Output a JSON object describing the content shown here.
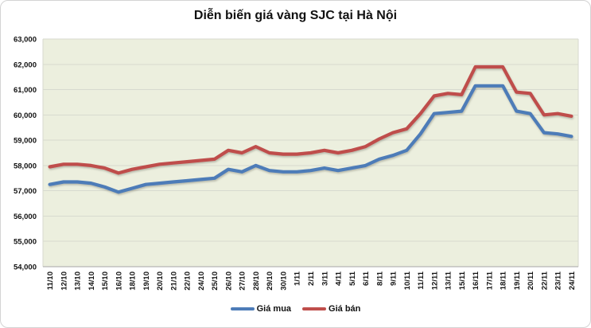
{
  "title": "Diễn biến giá vàng SJC tại Hà Nội",
  "legend": {
    "items": [
      {
        "label": "Giá mua",
        "color": "#4d7cb8"
      },
      {
        "label": "Giá bán",
        "color": "#bf4e4b"
      }
    ]
  },
  "chart_data": {
    "type": "line",
    "title": "Diễn biến giá vàng SJC tại Hà Nội",
    "categories": [
      "11/10",
      "12/10",
      "13/10",
      "14/10",
      "15/10",
      "16/10",
      "18/10",
      "19/10",
      "20/10",
      "21/10",
      "22/10",
      "24/10",
      "25/10",
      "26/10",
      "27/10",
      "28/10",
      "29/10",
      "30/10",
      "1/11",
      "2/11",
      "3/11",
      "4/11",
      "5/11",
      "6/11",
      "8/11",
      "9/11",
      "10/11",
      "11/11",
      "12/11",
      "13/11",
      "15/11",
      "16/11",
      "17/11",
      "18/11",
      "19/11",
      "20/11",
      "22/11",
      "23/11",
      "24/11"
    ],
    "series": [
      {
        "name": "Giá mua",
        "color": "#4d7cb8",
        "values": [
          57250,
          57350,
          57350,
          57300,
          57150,
          56950,
          57100,
          57250,
          57300,
          57350,
          57400,
          57450,
          57500,
          57850,
          57750,
          58000,
          57800,
          57750,
          57750,
          57800,
          57900,
          57800,
          57900,
          58000,
          58250,
          58400,
          58600,
          59250,
          60050,
          60100,
          60150,
          61150,
          61150,
          61150,
          60150,
          60050,
          59300,
          59250,
          59150
        ]
      },
      {
        "name": "Giá bán",
        "color": "#bf4e4b",
        "values": [
          57950,
          58050,
          58050,
          58000,
          57900,
          57700,
          57850,
          57950,
          58050,
          58100,
          58150,
          58200,
          58250,
          58600,
          58500,
          58750,
          58500,
          58450,
          58450,
          58500,
          58600,
          58500,
          58600,
          58750,
          59050,
          59300,
          59450,
          60050,
          60750,
          60850,
          60800,
          61900,
          61900,
          61900,
          60900,
          60850,
          60000,
          60050,
          59950
        ]
      }
    ],
    "ylim": [
      54000,
      63000
    ],
    "ytick_step": 1000,
    "ytick_labels": [
      "54,000",
      "55,000",
      "56,000",
      "57,000",
      "58,000",
      "59,000",
      "60,000",
      "61,000",
      "62,000",
      "63,000"
    ],
    "xlabel": "",
    "ylabel": "",
    "grid": true,
    "legend_position": "bottom",
    "plot_bg": "#ecefde",
    "gridline_color": "#d7dacf",
    "axis_color": "#a6a6a6"
  }
}
